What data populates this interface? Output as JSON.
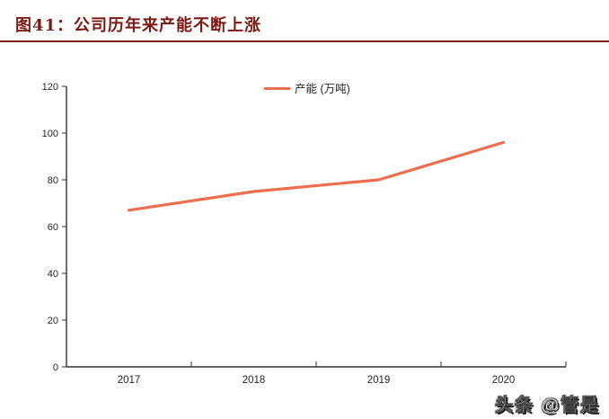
{
  "header": {
    "title": "图41：公司历年来产能不断上涨",
    "title_color": "#7A1A14",
    "rule_color": "#7E2418"
  },
  "chart_data": {
    "type": "line",
    "title": "",
    "categories": [
      "2017",
      "2018",
      "2019",
      "2020"
    ],
    "series": [
      {
        "name": "产能 (万吨)",
        "values": [
          67,
          75,
          80,
          96
        ],
        "color": "#ED6E4D"
      }
    ],
    "xlabel": "",
    "ylabel": "",
    "ylim": [
      0,
      120
    ],
    "yticks": [
      0,
      20,
      40,
      60,
      80,
      100,
      120
    ],
    "grid": false,
    "legend_position": "top-center",
    "axis_color": "#333333",
    "tick_label_color": "#262626"
  },
  "watermark": {
    "text": "头条 @管是"
  }
}
